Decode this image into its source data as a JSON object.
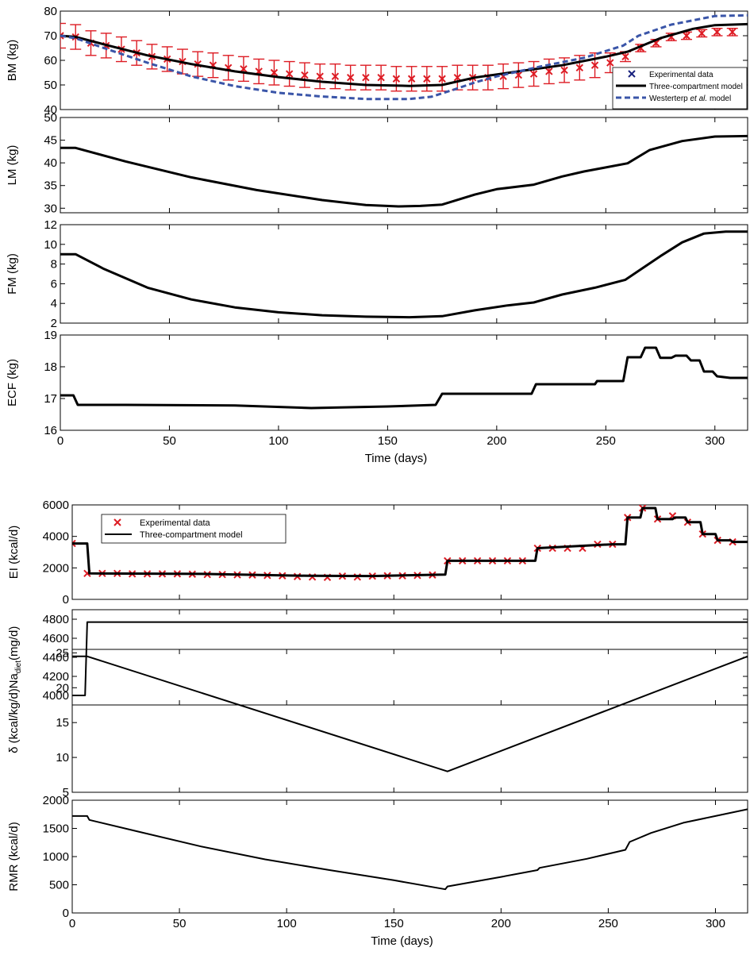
{
  "colors": {
    "experimental": "#dd1c24",
    "model": "#000000",
    "westerterp": "#3a55a8",
    "legend_cross": "#1a237e"
  },
  "chart_data": [
    {
      "type": "line",
      "panel": "BM",
      "ylabel": "BM (kg)",
      "xlim": [
        0,
        315
      ],
      "ylim": [
        40,
        80
      ],
      "yticks": [
        40,
        50,
        60,
        70,
        80
      ],
      "xticks": [
        0,
        50,
        100,
        150,
        200,
        250,
        300
      ],
      "legend": {
        "placement": "bottom-right",
        "entries": [
          {
            "label": "Experimental data",
            "style": "cross"
          },
          {
            "label": "Three-compartment model",
            "style": "solid"
          },
          {
            "label_parts": [
              "Westerterp ",
              "et al.",
              " model"
            ],
            "style": "dashed"
          }
        ]
      },
      "series": [
        {
          "name": "Experimental data",
          "kind": "errorbar",
          "x": [
            0,
            7,
            14,
            21,
            28,
            35,
            42,
            49,
            56,
            63,
            70,
            77,
            84,
            91,
            98,
            105,
            112,
            119,
            126,
            133,
            140,
            147,
            154,
            161,
            168,
            175,
            182,
            189,
            196,
            203,
            210,
            217,
            224,
            231,
            238,
            245,
            252,
            259,
            266,
            273,
            280,
            287,
            294,
            301,
            308
          ],
          "y": [
            70,
            69.5,
            67,
            66,
            64.5,
            63,
            61.5,
            60.5,
            59.5,
            58.5,
            58,
            57,
            56.5,
            55.5,
            55,
            54.5,
            54,
            53.5,
            53.5,
            53,
            53,
            53,
            52.5,
            52.5,
            52.5,
            52.5,
            53,
            53,
            53,
            53.5,
            54,
            54.5,
            55.5,
            56,
            57,
            58,
            59,
            61.5,
            65,
            67,
            69.5,
            70,
            71,
            71.5,
            71.5
          ],
          "err": [
            5,
            5,
            5,
            5,
            5,
            5,
            5,
            5,
            5,
            5,
            5,
            5,
            5,
            5,
            5,
            5,
            5,
            5,
            5,
            5,
            5,
            5,
            5,
            5,
            5,
            5,
            5,
            5,
            5,
            5,
            5,
            5,
            5,
            5,
            5,
            5,
            4,
            2,
            1.5,
            1.5,
            1.5,
            1.5,
            1.5,
            1.5,
            1.5
          ]
        },
        {
          "name": "Three-compartment model",
          "kind": "line",
          "x": [
            0,
            7,
            20,
            40,
            60,
            80,
            100,
            120,
            140,
            160,
            175,
            190,
            210,
            230,
            250,
            260,
            275,
            290,
            300,
            315
          ],
          "y": [
            70,
            69.5,
            66.5,
            62,
            58.5,
            55.5,
            53.2,
            51.3,
            50,
            49.6,
            50,
            53,
            55.5,
            58,
            61.5,
            63.5,
            69,
            72.8,
            74.3,
            74.7
          ]
        },
        {
          "name": "Westerterp et al. model",
          "kind": "dashed",
          "x": [
            0,
            7,
            20,
            40,
            60,
            80,
            100,
            120,
            140,
            160,
            170,
            180,
            190,
            200,
            220,
            240,
            258,
            265,
            280,
            300,
            315
          ],
          "y": [
            70,
            69,
            65,
            59,
            53.5,
            49.5,
            46.8,
            45.3,
            44.3,
            44.3,
            45.2,
            48,
            51,
            53.5,
            57.5,
            61,
            66,
            70,
            74.5,
            78,
            78.3
          ]
        }
      ]
    },
    {
      "type": "line",
      "panel": "LM",
      "ylabel": "LM (kg)",
      "xlim": [
        0,
        315
      ],
      "ylim": [
        29,
        50
      ],
      "yticks": [
        30,
        35,
        40,
        45,
        50
      ],
      "series": [
        {
          "kind": "line",
          "x": [
            0,
            7,
            30,
            60,
            90,
            120,
            140,
            155,
            165,
            175,
            190,
            200,
            217,
            230,
            240,
            250,
            260,
            270,
            285,
            300,
            315
          ],
          "y": [
            43.3,
            43.3,
            40.3,
            36.8,
            34,
            31.8,
            30.7,
            30.4,
            30.5,
            30.8,
            33,
            34.2,
            35.2,
            37,
            38.1,
            39,
            39.9,
            42.8,
            44.8,
            45.8,
            45.9
          ]
        }
      ]
    },
    {
      "type": "line",
      "panel": "FM",
      "ylabel": "FM (kg)",
      "xlim": [
        0,
        315
      ],
      "ylim": [
        2,
        12
      ],
      "yticks": [
        2,
        4,
        6,
        8,
        10,
        12
      ],
      "series": [
        {
          "kind": "line",
          "x": [
            0,
            7,
            20,
            40,
            60,
            80,
            100,
            120,
            140,
            160,
            175,
            190,
            205,
            217,
            230,
            245,
            259,
            265,
            275,
            285,
            295,
            305,
            315
          ],
          "y": [
            9,
            9,
            7.5,
            5.6,
            4.4,
            3.6,
            3.1,
            2.8,
            2.65,
            2.6,
            2.7,
            3.3,
            3.8,
            4.1,
            4.9,
            5.6,
            6.4,
            7.3,
            8.8,
            10.2,
            11.1,
            11.3,
            11.3
          ]
        }
      ]
    },
    {
      "type": "line",
      "panel": "ECF",
      "ylabel": "ECF (kg)",
      "xlabel": "Time (days)",
      "xlim": [
        0,
        315
      ],
      "ylim": [
        16,
        19
      ],
      "yticks": [
        16,
        17,
        18,
        19
      ],
      "xticks": [
        0,
        50,
        100,
        150,
        200,
        250,
        300
      ],
      "series": [
        {
          "kind": "line",
          "x": [
            0,
            6,
            8,
            30,
            80,
            115,
            150,
            172,
            175,
            200,
            216,
            218,
            245,
            246,
            258,
            260,
            266,
            268,
            273,
            275,
            280,
            282,
            287,
            289,
            293,
            295,
            299,
            301,
            307,
            315
          ],
          "y": [
            17.1,
            17.1,
            16.8,
            16.8,
            16.78,
            16.7,
            16.75,
            16.8,
            17.15,
            17.15,
            17.15,
            17.45,
            17.45,
            17.55,
            17.55,
            18.3,
            18.3,
            18.6,
            18.6,
            18.28,
            18.28,
            18.35,
            18.35,
            18.2,
            18.2,
            17.85,
            17.85,
            17.7,
            17.65,
            17.65
          ]
        }
      ]
    },
    {
      "type": "line",
      "panel": "EI",
      "ylabel": "EI (kcal/d)",
      "xlim": [
        0,
        315
      ],
      "ylim": [
        0,
        6000
      ],
      "yticks": [
        0,
        2000,
        4000,
        6000
      ],
      "legend": {
        "placement": "top-left",
        "entries": [
          {
            "label": "Experimental data",
            "style": "cross"
          },
          {
            "label": "Three-compartment model",
            "style": "solid"
          }
        ]
      },
      "series": [
        {
          "name": "Experimental data",
          "kind": "markers",
          "x": [
            0,
            7,
            14,
            21,
            28,
            35,
            42,
            49,
            56,
            63,
            70,
            77,
            84,
            91,
            98,
            105,
            112,
            119,
            126,
            133,
            140,
            147,
            154,
            161,
            168,
            175,
            182,
            189,
            196,
            203,
            210,
            217,
            224,
            231,
            238,
            245,
            252,
            259,
            266,
            273,
            280,
            287,
            294,
            301,
            308
          ],
          "y": [
            3550,
            1650,
            1650,
            1650,
            1620,
            1620,
            1620,
            1620,
            1600,
            1580,
            1580,
            1560,
            1550,
            1520,
            1500,
            1450,
            1420,
            1400,
            1480,
            1420,
            1480,
            1500,
            1500,
            1520,
            1550,
            2450,
            2450,
            2450,
            2450,
            2450,
            2450,
            3250,
            3250,
            3250,
            3250,
            3500,
            3500,
            5200,
            5800,
            5100,
            5300,
            4900,
            4150,
            3750,
            3650
          ]
        },
        {
          "name": "Three-compartment model",
          "kind": "line",
          "x": [
            0,
            7,
            8,
            60,
            110,
            140,
            174,
            175,
            216,
            217,
            252,
            253,
            258,
            259,
            265,
            266,
            272,
            273,
            280,
            281,
            286,
            287,
            293,
            294,
            300,
            301,
            307,
            308,
            315
          ],
          "y": [
            3550,
            3550,
            1650,
            1620,
            1500,
            1480,
            1580,
            2450,
            2450,
            3250,
            3500,
            3500,
            3500,
            5200,
            5200,
            5800,
            5800,
            5100,
            5100,
            5200,
            5200,
            4900,
            4900,
            4150,
            4150,
            3750,
            3750,
            3650,
            3650
          ]
        }
      ]
    },
    {
      "type": "line",
      "panel": "Na_diet",
      "ylabel_main": "Na",
      "ylabel_sub": "diet",
      "ylabel_rest": "(mg/d)",
      "xlim": [
        0,
        315
      ],
      "ylim": [
        3900,
        4900
      ],
      "yticks": [
        4000,
        4200,
        4400,
        4600,
        4800
      ],
      "series": [
        {
          "kind": "line",
          "x": [
            0,
            6,
            7,
            315
          ],
          "y": [
            4000,
            4000,
            4770,
            4770
          ]
        }
      ]
    },
    {
      "type": "line",
      "panel": "delta",
      "ylabel": "δ (kcal/kg/d)",
      "xlim": [
        0,
        315
      ],
      "ylim": [
        5,
        25.5
      ],
      "yticks": [
        5,
        10,
        15,
        20,
        25
      ],
      "series": [
        {
          "kind": "line",
          "x": [
            0,
            7,
            175,
            315
          ],
          "y": [
            24.5,
            24.5,
            8,
            24.5
          ]
        }
      ]
    },
    {
      "type": "line",
      "panel": "RMR",
      "ylabel": "RMR (kcal/d)",
      "xlabel": "Time (days)",
      "xlim": [
        0,
        315
      ],
      "ylim": [
        0,
        2000
      ],
      "yticks": [
        0,
        500,
        1000,
        1500,
        2000
      ],
      "xticks": [
        0,
        50,
        100,
        150,
        200,
        250,
        300
      ],
      "series": [
        {
          "kind": "line",
          "x": [
            0,
            7,
            8,
            30,
            60,
            90,
            120,
            150,
            174,
            175,
            200,
            217,
            218,
            240,
            258,
            260,
            270,
            285,
            300,
            315
          ],
          "y": [
            1720,
            1720,
            1650,
            1450,
            1180,
            950,
            760,
            580,
            420,
            470,
            640,
            760,
            800,
            960,
            1120,
            1260,
            1420,
            1600,
            1720,
            1840
          ]
        }
      ]
    }
  ]
}
